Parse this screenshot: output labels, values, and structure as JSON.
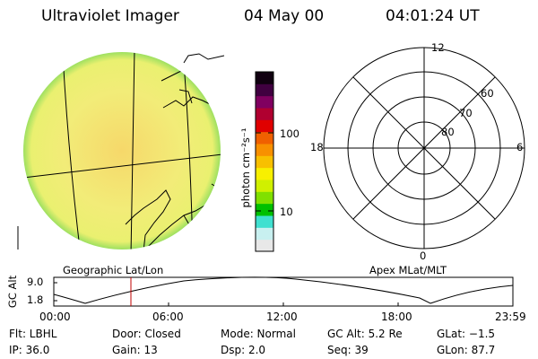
{
  "header": {
    "instrument": "Ultraviolet Imager",
    "date": "04 May 00",
    "time": "04:01:24 UT"
  },
  "colorbar": {
    "unit_label": "photon cm⁻²s⁻¹",
    "ticks": [
      "100",
      "10"
    ],
    "colors": [
      "#e8e8e8",
      "#c8f0f0",
      "#40e0d0",
      "#00c000",
      "#80e000",
      "#d0f000",
      "#f8f000",
      "#f8c000",
      "#f89000",
      "#f06000",
      "#e00000",
      "#b00030",
      "#800060",
      "#400040",
      "#100010"
    ]
  },
  "left_map": {
    "caption": "Geographic Lat/Lon",
    "fill_color": "#f2ee7a"
  },
  "right_map": {
    "caption": "Apex MLat/MLT",
    "mlt_labels": {
      "top": "12",
      "right": "6",
      "bottom": "0",
      "left": "18"
    },
    "lat_labels": [
      "60",
      "70",
      "80"
    ]
  },
  "orbit_plot": {
    "ylabel": "GC Alt",
    "yticks": [
      "9.0",
      "1.8"
    ],
    "xticks": [
      "00:00",
      "06:00",
      "12:00",
      "18:00",
      "23:59"
    ],
    "marker_color": "#c00000"
  },
  "info": {
    "flt": "Flt: LBHL",
    "ip": "IP: 36.0",
    "door": "Door: Closed",
    "gain": "Gain: 13",
    "mode": "Mode: Normal",
    "dsp": "Dsp:    2.0",
    "gc_alt": "GC Alt: 5.2 Re",
    "seq": "Seq: 39",
    "glat": "GLat:  −1.5",
    "glon": "GLon:  87.7"
  }
}
